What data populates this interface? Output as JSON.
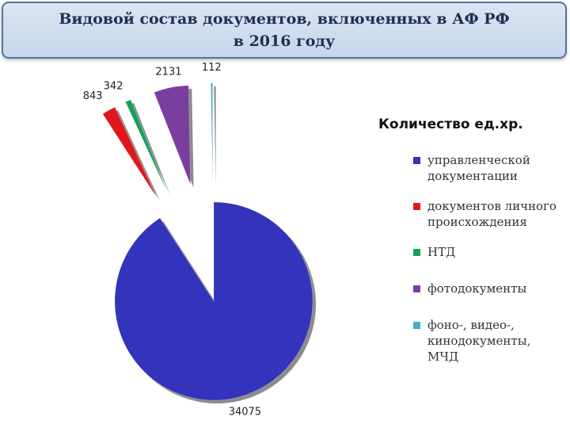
{
  "header": {
    "title": "Видовой состав документов, включенных в АФ РФ в 2016 году"
  },
  "chart_data": {
    "type": "pie",
    "title": "Количество ед.хр.",
    "legend_position": "right",
    "exploded": [
      false,
      true,
      true,
      true,
      true
    ],
    "slices": [
      {
        "label": "управленческой документации",
        "value": 34075,
        "color": "#3333bb"
      },
      {
        "label": "документов личного происхождения",
        "value": 843,
        "color": "#e0161a"
      },
      {
        "label": "НТД",
        "value": 342,
        "color": "#15a05a"
      },
      {
        "label": "фотодокументы",
        "value": 2131,
        "color": "#7a3f9e"
      },
      {
        "label": "фоно-, видео-, кинодокументы, МЧД",
        "value": 112,
        "color": "#4bacc6"
      }
    ]
  }
}
